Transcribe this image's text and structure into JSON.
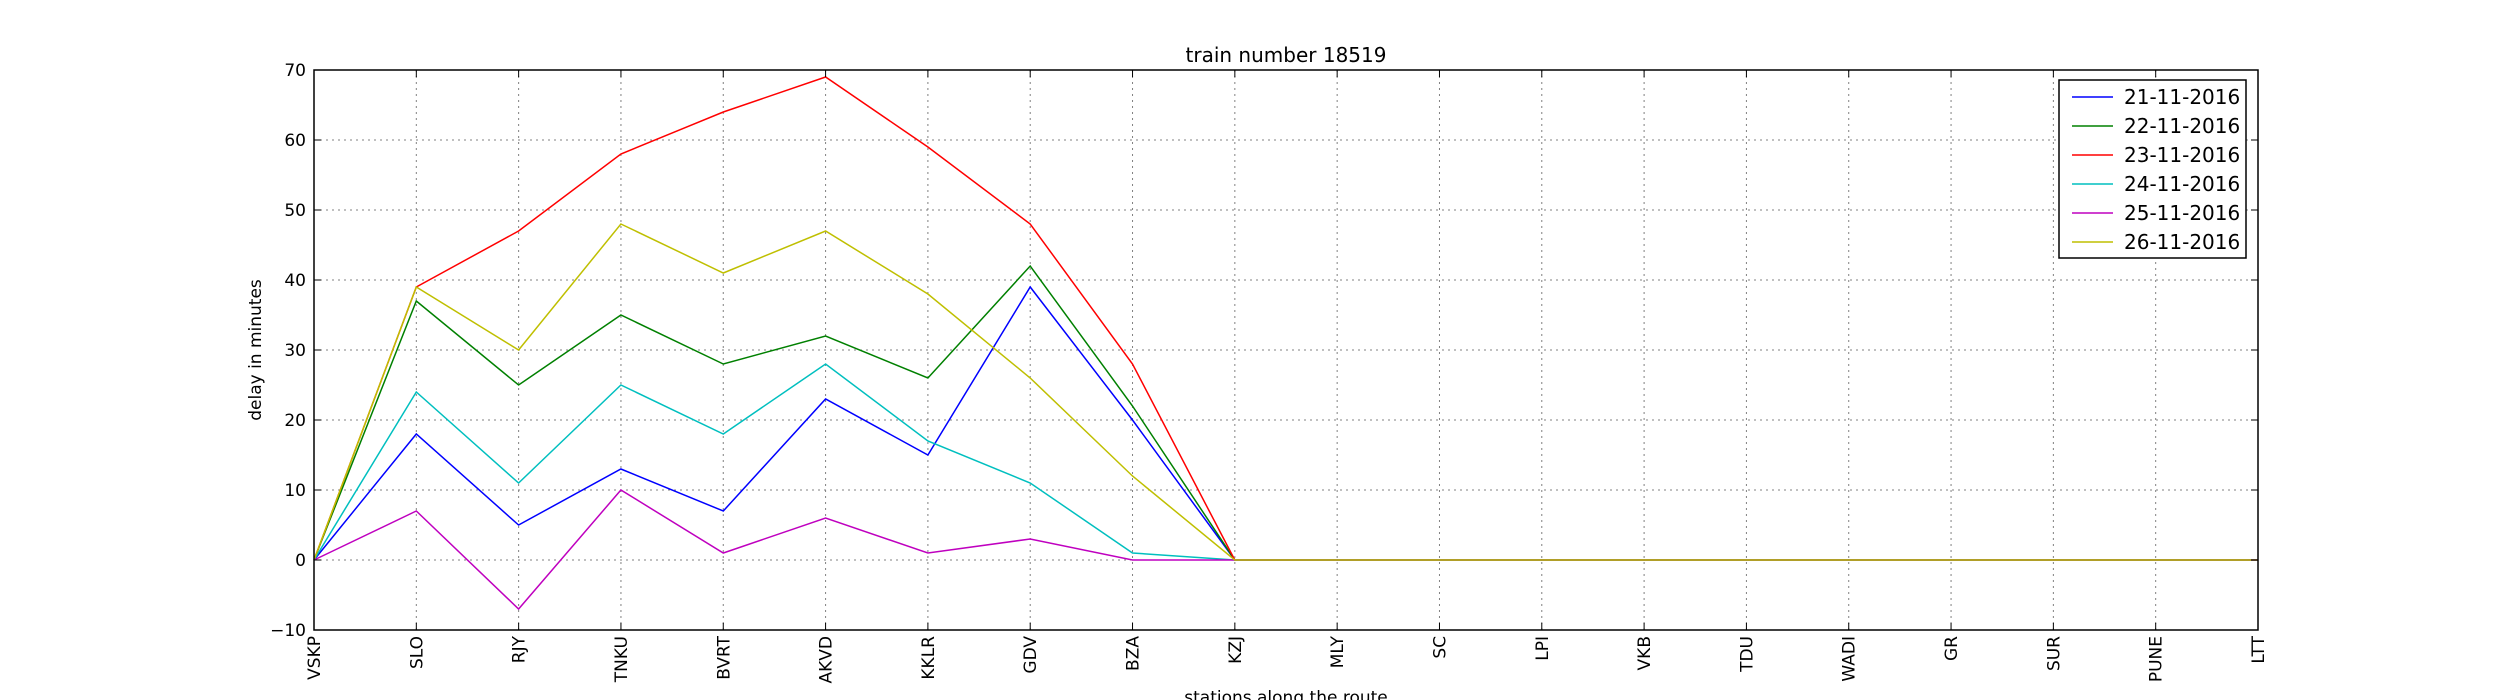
{
  "chart_data": {
    "type": "line",
    "title": "train number 18519",
    "xlabel": "stations along the route",
    "ylabel": "delay in minutes",
    "categories": [
      "VSKP",
      "SLO",
      "RJY",
      "TNKU",
      "BVRT",
      "AKVD",
      "KKLR",
      "GDV",
      "BZA",
      "KZJ",
      "MLY",
      "SC",
      "LPI",
      "VKB",
      "TDU",
      "WADI",
      "GR",
      "SUR",
      "PUNE",
      "LTT"
    ],
    "ylim": [
      -10,
      70
    ],
    "yticks": [
      -10,
      0,
      10,
      20,
      30,
      40,
      50,
      60,
      70
    ],
    "grid": true,
    "legend_position": "top-right",
    "series": [
      {
        "name": "21-11-2016",
        "color": "#0000ff",
        "values": [
          0,
          18,
          5,
          13,
          7,
          23,
          15,
          39,
          20,
          0,
          0,
          0,
          0,
          0,
          0,
          0,
          0,
          0,
          0,
          0
        ]
      },
      {
        "name": "22-11-2016",
        "color": "#008000",
        "values": [
          0,
          37,
          25,
          35,
          28,
          32,
          26,
          42,
          22,
          0,
          0,
          0,
          0,
          0,
          0,
          0,
          0,
          0,
          0,
          0
        ]
      },
      {
        "name": "23-11-2016",
        "color": "#ff0000",
        "values": [
          0,
          39,
          47,
          58,
          64,
          69,
          59,
          48,
          28,
          0,
          0,
          0,
          0,
          0,
          0,
          0,
          0,
          0,
          0,
          0
        ]
      },
      {
        "name": "24-11-2016",
        "color": "#00bfbf",
        "values": [
          0,
          24,
          11,
          25,
          18,
          28,
          17,
          11,
          1,
          0,
          0,
          0,
          0,
          0,
          0,
          0,
          0,
          0,
          0,
          0
        ]
      },
      {
        "name": "25-11-2016",
        "color": "#bf00bf",
        "values": [
          0,
          7,
          -7,
          10,
          1,
          6,
          1,
          3,
          0,
          0,
          0,
          0,
          0,
          0,
          0,
          0,
          0,
          0,
          0,
          0
        ]
      },
      {
        "name": "26-11-2016",
        "color": "#bfbf00",
        "values": [
          0,
          39,
          30,
          48,
          41,
          47,
          38,
          26,
          12,
          0,
          0,
          0,
          0,
          0,
          0,
          0,
          0,
          0,
          0,
          0
        ]
      }
    ]
  }
}
